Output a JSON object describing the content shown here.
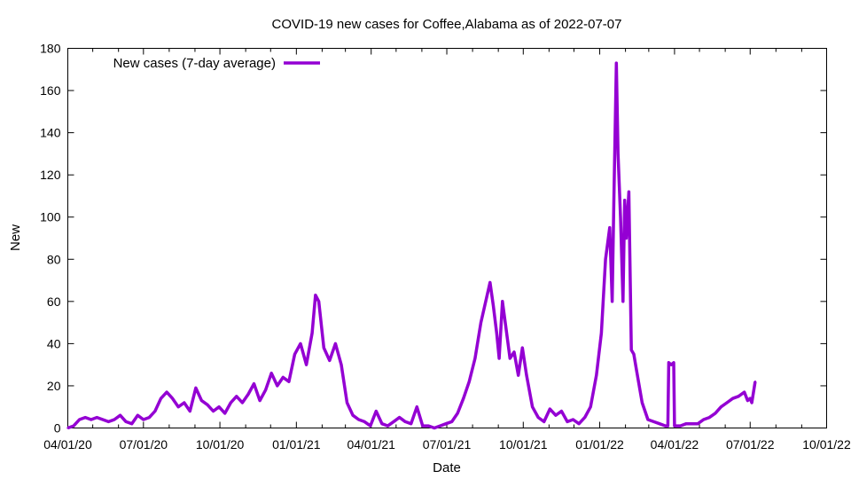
{
  "chart_data": {
    "type": "line",
    "title": "COVID-19 new cases for Coffee,Alabama as of 2022-07-07",
    "xlabel": "Date",
    "ylabel": "New",
    "x_tick_labels": [
      "04/01/20",
      "07/01/20",
      "10/01/20",
      "01/01/21",
      "04/01/21",
      "07/01/21",
      "10/01/21",
      "01/01/22",
      "04/01/22",
      "07/01/22",
      "10/01/22"
    ],
    "x_range": [
      "2020-04-01",
      "2022-10-01"
    ],
    "y_ticks": [
      0,
      20,
      40,
      60,
      80,
      100,
      120,
      140,
      160,
      180
    ],
    "ylim": [
      0,
      180
    ],
    "grid": false,
    "legend_position": "top-left",
    "series": [
      {
        "name": "New cases (7-day average)",
        "color": "#9400d3",
        "points": [
          [
            "2020-04-01",
            0
          ],
          [
            "2020-04-08",
            1
          ],
          [
            "2020-04-15",
            4
          ],
          [
            "2020-04-22",
            5
          ],
          [
            "2020-04-29",
            4
          ],
          [
            "2020-05-06",
            5
          ],
          [
            "2020-05-13",
            4
          ],
          [
            "2020-05-20",
            3
          ],
          [
            "2020-05-27",
            4
          ],
          [
            "2020-06-03",
            6
          ],
          [
            "2020-06-10",
            3
          ],
          [
            "2020-06-17",
            2
          ],
          [
            "2020-06-24",
            6
          ],
          [
            "2020-07-01",
            4
          ],
          [
            "2020-07-08",
            5
          ],
          [
            "2020-07-15",
            8
          ],
          [
            "2020-07-22",
            14
          ],
          [
            "2020-07-29",
            17
          ],
          [
            "2020-08-05",
            14
          ],
          [
            "2020-08-12",
            10
          ],
          [
            "2020-08-19",
            12
          ],
          [
            "2020-08-26",
            8
          ],
          [
            "2020-09-02",
            19
          ],
          [
            "2020-09-09",
            13
          ],
          [
            "2020-09-16",
            11
          ],
          [
            "2020-09-23",
            8
          ],
          [
            "2020-09-30",
            10
          ],
          [
            "2020-10-07",
            7
          ],
          [
            "2020-10-14",
            12
          ],
          [
            "2020-10-21",
            15
          ],
          [
            "2020-10-28",
            12
          ],
          [
            "2020-11-04",
            16
          ],
          [
            "2020-11-11",
            21
          ],
          [
            "2020-11-18",
            13
          ],
          [
            "2020-11-25",
            18
          ],
          [
            "2020-12-02",
            26
          ],
          [
            "2020-12-09",
            20
          ],
          [
            "2020-12-16",
            24
          ],
          [
            "2020-12-23",
            22
          ],
          [
            "2020-12-30",
            35
          ],
          [
            "2021-01-06",
            40
          ],
          [
            "2021-01-13",
            30
          ],
          [
            "2021-01-20",
            45
          ],
          [
            "2021-01-24",
            63
          ],
          [
            "2021-01-28",
            60
          ],
          [
            "2021-02-03",
            38
          ],
          [
            "2021-02-10",
            32
          ],
          [
            "2021-02-17",
            40
          ],
          [
            "2021-02-24",
            30
          ],
          [
            "2021-03-03",
            12
          ],
          [
            "2021-03-10",
            6
          ],
          [
            "2021-03-17",
            4
          ],
          [
            "2021-03-24",
            3
          ],
          [
            "2021-03-31",
            1
          ],
          [
            "2021-04-07",
            8
          ],
          [
            "2021-04-14",
            2
          ],
          [
            "2021-04-21",
            1
          ],
          [
            "2021-04-28",
            3
          ],
          [
            "2021-05-05",
            5
          ],
          [
            "2021-05-12",
            3
          ],
          [
            "2021-05-19",
            2
          ],
          [
            "2021-05-26",
            10
          ],
          [
            "2021-06-02",
            1
          ],
          [
            "2021-06-09",
            1
          ],
          [
            "2021-06-16",
            0
          ],
          [
            "2021-06-23",
            1
          ],
          [
            "2021-06-30",
            2
          ],
          [
            "2021-07-07",
            3
          ],
          [
            "2021-07-14",
            7
          ],
          [
            "2021-07-21",
            14
          ],
          [
            "2021-07-28",
            22
          ],
          [
            "2021-08-04",
            33
          ],
          [
            "2021-08-11",
            50
          ],
          [
            "2021-08-18",
            62
          ],
          [
            "2021-08-22",
            69
          ],
          [
            "2021-08-26",
            58
          ],
          [
            "2021-08-30",
            45
          ],
          [
            "2021-09-02",
            33
          ],
          [
            "2021-09-06",
            60
          ],
          [
            "2021-09-10",
            48
          ],
          [
            "2021-09-15",
            33
          ],
          [
            "2021-09-20",
            36
          ],
          [
            "2021-09-25",
            25
          ],
          [
            "2021-09-30",
            38
          ],
          [
            "2021-10-05",
            25
          ],
          [
            "2021-10-12",
            10
          ],
          [
            "2021-10-19",
            5
          ],
          [
            "2021-10-26",
            3
          ],
          [
            "2021-11-02",
            9
          ],
          [
            "2021-11-09",
            6
          ],
          [
            "2021-11-16",
            8
          ],
          [
            "2021-11-23",
            3
          ],
          [
            "2021-11-30",
            4
          ],
          [
            "2021-12-07",
            2
          ],
          [
            "2021-12-14",
            5
          ],
          [
            "2021-12-21",
            10
          ],
          [
            "2021-12-28",
            25
          ],
          [
            "2022-01-03",
            45
          ],
          [
            "2022-01-08",
            80
          ],
          [
            "2022-01-13",
            95
          ],
          [
            "2022-01-16",
            60
          ],
          [
            "2022-01-18",
            108
          ],
          [
            "2022-01-21",
            173
          ],
          [
            "2022-01-23",
            130
          ],
          [
            "2022-01-26",
            100
          ],
          [
            "2022-01-29",
            60
          ],
          [
            "2022-01-31",
            108
          ],
          [
            "2022-02-02",
            90
          ],
          [
            "2022-02-05",
            112
          ],
          [
            "2022-02-08",
            37
          ],
          [
            "2022-02-11",
            35
          ],
          [
            "2022-02-14",
            28
          ],
          [
            "2022-02-21",
            12
          ],
          [
            "2022-02-28",
            4
          ],
          [
            "2022-03-07",
            3
          ],
          [
            "2022-03-14",
            2
          ],
          [
            "2022-03-21",
            1
          ],
          [
            "2022-03-24",
            1
          ],
          [
            "2022-03-25",
            31
          ],
          [
            "2022-03-28",
            30
          ],
          [
            "2022-03-31",
            31
          ],
          [
            "2022-04-01",
            1
          ],
          [
            "2022-04-08",
            1
          ],
          [
            "2022-04-15",
            2
          ],
          [
            "2022-04-22",
            2
          ],
          [
            "2022-04-29",
            2
          ],
          [
            "2022-05-06",
            4
          ],
          [
            "2022-05-13",
            5
          ],
          [
            "2022-05-20",
            7
          ],
          [
            "2022-05-27",
            10
          ],
          [
            "2022-06-03",
            12
          ],
          [
            "2022-06-10",
            14
          ],
          [
            "2022-06-17",
            15
          ],
          [
            "2022-06-24",
            17
          ],
          [
            "2022-06-28",
            13
          ],
          [
            "2022-07-01",
            14
          ],
          [
            "2022-07-03",
            12
          ],
          [
            "2022-07-07",
            22
          ]
        ]
      }
    ]
  }
}
